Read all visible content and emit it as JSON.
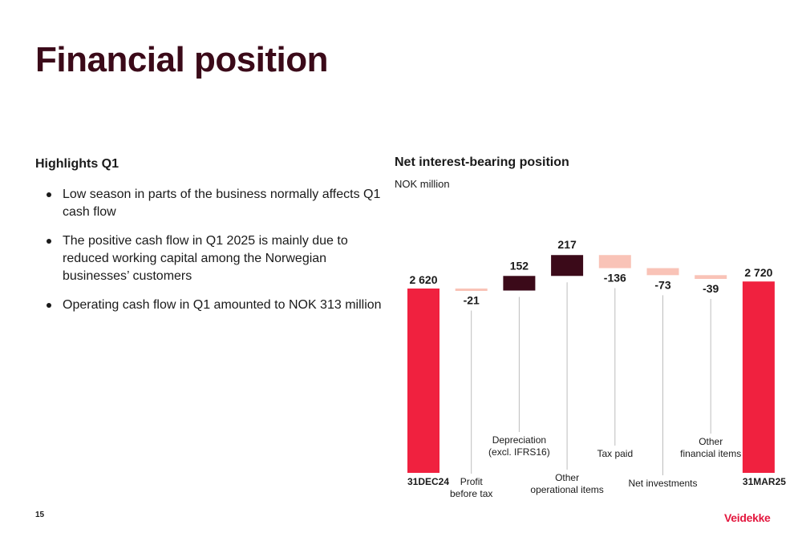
{
  "page": {
    "title": "Financial position",
    "page_number": "15",
    "logo_text": "Veidekke"
  },
  "highlights": {
    "heading": "Highlights Q1",
    "bullets": [
      "Low season in parts of the business normally affects Q1 cash flow",
      "The positive cash flow in Q1 2025 is mainly due to reduced working capital among the Norwegian businesses’ customers",
      "Operating cash flow in Q1 amounted to NOK 313 million"
    ]
  },
  "chart_data": {
    "type": "bar",
    "subtype": "waterfall",
    "title": "Net interest-bearing position",
    "subtitle": "NOK million",
    "categories": [
      "31DEC24",
      "Profit before tax",
      "Depreciation (excl. IFRS16)",
      "Other operational items",
      "Tax paid",
      "Net investments",
      "Other financial items",
      "31MAR25"
    ],
    "values": [
      2620,
      -21,
      152,
      217,
      -136,
      -73,
      -39,
      2720
    ],
    "data_labels": [
      "2 620",
      "-21",
      "152",
      "217",
      "-136",
      "-73",
      "-39",
      "2 720"
    ],
    "kinds": [
      "total",
      "delta",
      "delta",
      "delta",
      "delta",
      "delta",
      "delta",
      "total"
    ],
    "colors": {
      "total": "#f0213f",
      "increase": "#3b0a19",
      "decrease": "#f9c3b7",
      "leader": "#bdbdbd"
    }
  }
}
